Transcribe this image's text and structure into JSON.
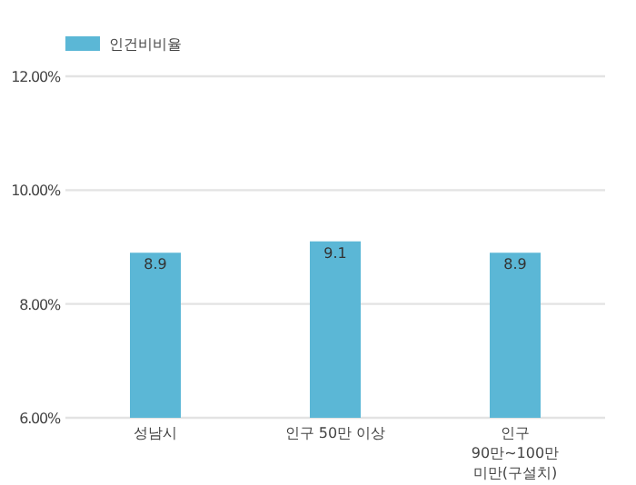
{
  "chart_data": {
    "type": "bar",
    "categories": [
      "성남시",
      "인구 50만 이상",
      "인구 90만~100만 미만(구설치)"
    ],
    "series": [
      {
        "name": "인건비비율",
        "color": "#5bb7d6",
        "values": [
          8.9,
          9.1,
          8.9
        ]
      }
    ],
    "ylim": [
      6,
      12
    ],
    "yticks": [
      {
        "value": 6,
        "label": "6.00%"
      },
      {
        "value": 8,
        "label": "8.00%"
      },
      {
        "value": 10,
        "label": "10.00%"
      },
      {
        "value": 12,
        "label": "12.00%"
      }
    ],
    "grid": "y",
    "legend": "top left",
    "data_labels": true
  }
}
